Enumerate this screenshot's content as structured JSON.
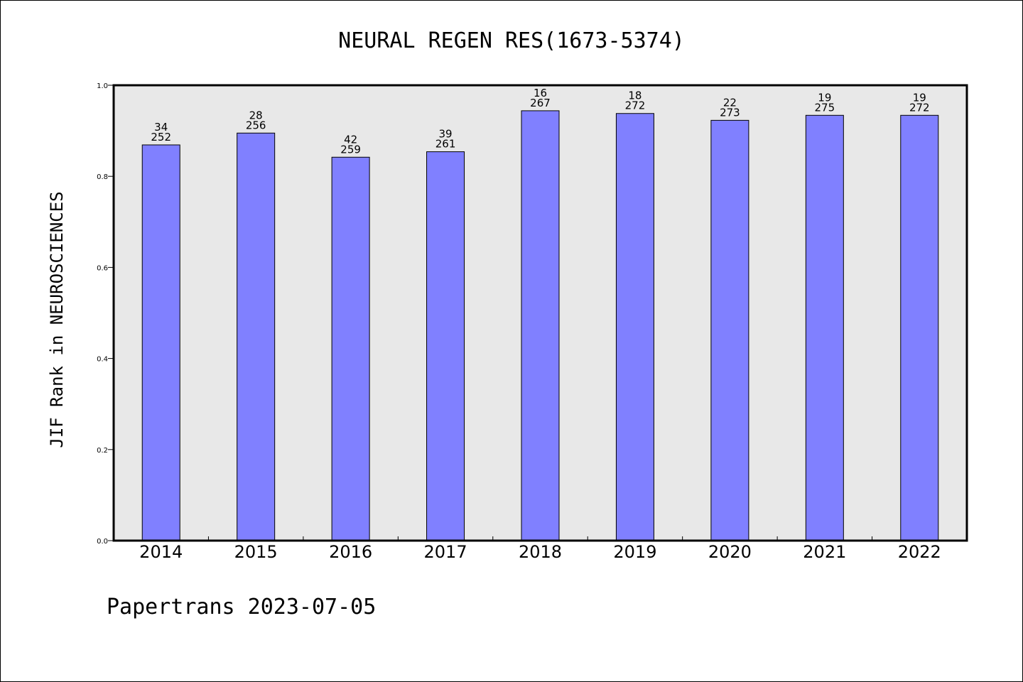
{
  "chart_data": {
    "type": "bar",
    "title": "NEURAL REGEN RES(1673-5374)",
    "xlabel": "",
    "ylabel": "JIF Rank in NEUROSCIENCES",
    "ylim": [
      0,
      1.0
    ],
    "yticks": [
      "0.0",
      "0.2",
      "0.4",
      "0.6",
      "0.8",
      "1.0"
    ],
    "categories": [
      "2014",
      "2015",
      "2016",
      "2017",
      "2018",
      "2019",
      "2020",
      "2021",
      "2022"
    ],
    "values": [
      0.869,
      0.895,
      0.842,
      0.854,
      0.944,
      0.938,
      0.923,
      0.934,
      0.934
    ],
    "ranks": [
      "34",
      "28",
      "42",
      "39",
      "16",
      "18",
      "22",
      "19",
      "19"
    ],
    "totals": [
      "252",
      "256",
      "259",
      "261",
      "267",
      "272",
      "273",
      "275",
      "272"
    ],
    "bar_color": "#8080ff",
    "plot_background": "#e8e8e8",
    "grid": false,
    "legend": "none"
  },
  "footer": "Papertrans 2023-07-05"
}
